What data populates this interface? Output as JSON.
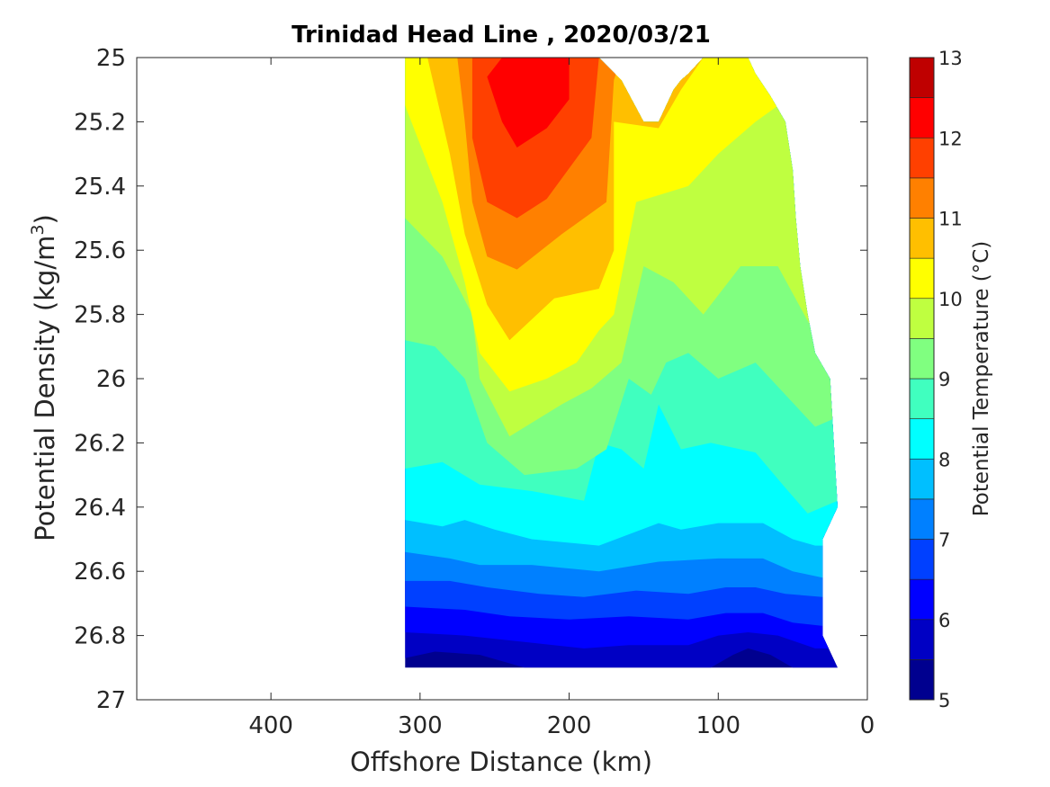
{
  "chart_data": {
    "type": "contour",
    "title": "Trinidad Head Line , 2020/03/21",
    "xlabel": "Offshore Distance (km)",
    "ylabel_main": "Potential Density (kg/m",
    "ylabel_sup": "3",
    "ylabel_close": ")",
    "colorbar_label": "Potential Temperature (°C)",
    "x_axis": {
      "range": [
        490,
        0
      ],
      "reversed": true,
      "ticks": [
        400,
        300,
        200,
        100,
        0
      ],
      "tick_labels": [
        "400",
        "300",
        "200",
        "100",
        "0"
      ]
    },
    "y_axis": {
      "range": [
        25,
        27
      ],
      "reversed": true,
      "ticks": [
        25,
        25.2,
        25.4,
        25.6,
        25.8,
        26,
        26.2,
        26.4,
        26.6,
        26.8,
        27
      ],
      "tick_labels": [
        "25",
        "25.2",
        "25.4",
        "25.6",
        "25.8",
        "26",
        "26.2",
        "26.4",
        "26.6",
        "26.8",
        "27"
      ]
    },
    "colorbar": {
      "range": [
        5,
        13
      ],
      "levels": [
        5,
        5.5,
        6,
        6.5,
        7,
        7.5,
        8,
        8.5,
        9,
        9.5,
        10,
        10.5,
        11,
        11.5,
        12,
        12.5,
        13
      ],
      "colors": [
        "#00008f",
        "#0000c4",
        "#0000ff",
        "#0040ff",
        "#0080ff",
        "#00bfff",
        "#00ffff",
        "#40ffbf",
        "#80ff80",
        "#bfff40",
        "#ffff00",
        "#ffbf00",
        "#ff8000",
        "#ff4000",
        "#ff0000",
        "#bf0000"
      ],
      "tick_values": [
        5,
        6,
        7,
        8,
        9,
        10,
        11,
        12,
        13
      ],
      "tick_labels": [
        "5",
        "6",
        "7",
        "8",
        "9",
        "10",
        "11",
        "12",
        "13"
      ]
    },
    "data_region": {
      "top_boundary": [
        [
          310,
          25
        ],
        [
          285,
          25
        ],
        [
          190,
          25
        ],
        [
          180,
          25
        ],
        [
          165,
          25.07
        ],
        [
          150,
          25.2
        ],
        [
          140,
          25.2
        ],
        [
          130,
          25.1
        ],
        [
          125,
          25.07
        ],
        [
          120,
          25.05
        ],
        [
          110,
          25
        ],
        [
          90,
          25
        ],
        [
          80,
          25
        ],
        [
          75,
          25.05
        ],
        [
          65,
          25.12
        ]
      ],
      "right_boundary": [
        [
          65,
          25.12
        ],
        [
          55,
          25.2
        ],
        [
          50,
          25.35
        ],
        [
          48,
          25.5
        ],
        [
          45,
          25.65
        ],
        [
          40,
          25.8
        ],
        [
          35,
          25.92
        ],
        [
          25,
          26.0
        ],
        [
          20,
          26.4
        ],
        [
          30,
          26.5
        ],
        [
          30,
          26.8
        ],
        [
          20,
          26.9
        ]
      ],
      "bottom": 26.9
    },
    "isolines": [
      {
        "level": 12.0,
        "points": [
          [
            255,
            25.06
          ],
          [
            245,
            25.0
          ],
          [
            200,
            25.0
          ],
          [
            200,
            25.13
          ],
          [
            215,
            25.22
          ],
          [
            235,
            25.28
          ],
          [
            245,
            25.2
          ],
          [
            255,
            25.06
          ]
        ]
      },
      {
        "level": 11.5,
        "points": [
          [
            265,
            25.0
          ],
          [
            265,
            25.25
          ],
          [
            255,
            25.45
          ],
          [
            235,
            25.5
          ],
          [
            215,
            25.44
          ],
          [
            185,
            25.25
          ],
          [
            180,
            25.0
          ]
        ]
      },
      {
        "level": 11.0,
        "points": [
          [
            275,
            25.0
          ],
          [
            270,
            25.2
          ],
          [
            265,
            25.45
          ],
          [
            255,
            25.62
          ],
          [
            235,
            25.66
          ],
          [
            205,
            25.55
          ],
          [
            175,
            25.45
          ],
          [
            170,
            25.07
          ],
          [
            165,
            25.0
          ]
        ]
      },
      {
        "level": 10.5,
        "points": [
          [
            295,
            25.0
          ],
          [
            280,
            25.3
          ],
          [
            270,
            25.55
          ],
          [
            255,
            25.77
          ],
          [
            240,
            25.88
          ],
          [
            210,
            25.75
          ],
          [
            180,
            25.72
          ],
          [
            170,
            25.6
          ],
          [
            170,
            25.2
          ],
          [
            140,
            25.22
          ],
          [
            125,
            25.1
          ],
          [
            110,
            25.0
          ]
        ]
      },
      {
        "level": 10.0,
        "points": [
          [
            310,
            25.15
          ],
          [
            285,
            25.45
          ],
          [
            270,
            25.7
          ],
          [
            260,
            25.92
          ],
          [
            240,
            26.04
          ],
          [
            215,
            26.0
          ],
          [
            195,
            25.95
          ],
          [
            180,
            25.85
          ],
          [
            170,
            25.8
          ],
          [
            155,
            25.45
          ],
          [
            120,
            25.4
          ],
          [
            100,
            25.3
          ],
          [
            75,
            25.2
          ],
          [
            60,
            25.15
          ]
        ]
      },
      {
        "level": 9.5,
        "points": [
          [
            310,
            25.5
          ],
          [
            285,
            25.62
          ],
          [
            265,
            25.8
          ],
          [
            260,
            26.0
          ],
          [
            240,
            26.18
          ],
          [
            205,
            26.08
          ],
          [
            185,
            26.03
          ],
          [
            165,
            25.95
          ],
          [
            150,
            25.65
          ],
          [
            130,
            25.7
          ],
          [
            110,
            25.8
          ],
          [
            85,
            25.65
          ],
          [
            60,
            25.65
          ],
          [
            40,
            25.82
          ],
          [
            30,
            25.9
          ]
        ]
      },
      {
        "level": 9.0,
        "points": [
          [
            310,
            25.88
          ],
          [
            290,
            25.9
          ],
          [
            270,
            26.0
          ],
          [
            255,
            26.2
          ],
          [
            230,
            26.3
          ],
          [
            195,
            26.28
          ],
          [
            175,
            26.22
          ],
          [
            160,
            26.0
          ],
          [
            145,
            26.05
          ],
          [
            135,
            25.95
          ],
          [
            120,
            25.92
          ],
          [
            100,
            26.0
          ],
          [
            75,
            25.95
          ],
          [
            55,
            26.05
          ],
          [
            35,
            26.15
          ],
          [
            20,
            26.12
          ]
        ]
      },
      {
        "level": 8.5,
        "points": [
          [
            310,
            26.28
          ],
          [
            285,
            26.26
          ],
          [
            260,
            26.33
          ],
          [
            225,
            26.35
          ],
          [
            190,
            26.38
          ],
          [
            180,
            26.2
          ],
          [
            165,
            26.22
          ],
          [
            150,
            26.28
          ],
          [
            140,
            26.08
          ],
          [
            125,
            26.22
          ],
          [
            105,
            26.2
          ],
          [
            75,
            26.23
          ],
          [
            55,
            26.34
          ],
          [
            40,
            26.42
          ],
          [
            20,
            26.38
          ]
        ]
      },
      {
        "level": 8.0,
        "points": [
          [
            310,
            26.44
          ],
          [
            285,
            26.46
          ],
          [
            270,
            26.44
          ],
          [
            250,
            26.47
          ],
          [
            225,
            26.5
          ],
          [
            180,
            26.52
          ],
          [
            140,
            26.45
          ],
          [
            125,
            26.47
          ],
          [
            100,
            26.45
          ],
          [
            70,
            26.45
          ],
          [
            50,
            26.5
          ],
          [
            35,
            26.52
          ]
        ]
      },
      {
        "level": 7.5,
        "points": [
          [
            310,
            26.54
          ],
          [
            280,
            26.56
          ],
          [
            260,
            26.58
          ],
          [
            225,
            26.58
          ],
          [
            180,
            26.6
          ],
          [
            140,
            26.57
          ],
          [
            100,
            26.56
          ],
          [
            70,
            26.56
          ],
          [
            50,
            26.6
          ],
          [
            30,
            26.62
          ]
        ]
      },
      {
        "level": 7.0,
        "points": [
          [
            310,
            26.63
          ],
          [
            280,
            26.63
          ],
          [
            255,
            26.65
          ],
          [
            220,
            26.67
          ],
          [
            190,
            26.68
          ],
          [
            155,
            26.66
          ],
          [
            120,
            26.67
          ],
          [
            95,
            26.65
          ],
          [
            75,
            26.65
          ],
          [
            55,
            26.67
          ],
          [
            30,
            26.68
          ]
        ]
      },
      {
        "level": 6.5,
        "points": [
          [
            310,
            26.71
          ],
          [
            270,
            26.72
          ],
          [
            240,
            26.74
          ],
          [
            200,
            26.75
          ],
          [
            160,
            26.74
          ],
          [
            120,
            26.75
          ],
          [
            95,
            26.73
          ],
          [
            70,
            26.73
          ],
          [
            50,
            26.76
          ],
          [
            30,
            26.77
          ]
        ]
      },
      {
        "level": 6.0,
        "points": [
          [
            310,
            26.79
          ],
          [
            270,
            26.8
          ],
          [
            230,
            26.82
          ],
          [
            190,
            26.84
          ],
          [
            160,
            26.83
          ],
          [
            120,
            26.83
          ],
          [
            100,
            26.8
          ],
          [
            80,
            26.79
          ],
          [
            60,
            26.8
          ],
          [
            35,
            26.84
          ]
        ]
      },
      {
        "level": 5.5,
        "points": [
          [
            310,
            26.87
          ],
          [
            290,
            26.85
          ],
          [
            260,
            26.86
          ],
          [
            230,
            26.9
          ],
          [
            105,
            26.9
          ],
          [
            90,
            26.86
          ],
          [
            80,
            26.84
          ],
          [
            65,
            26.86
          ],
          [
            50,
            26.9
          ]
        ]
      }
    ]
  }
}
